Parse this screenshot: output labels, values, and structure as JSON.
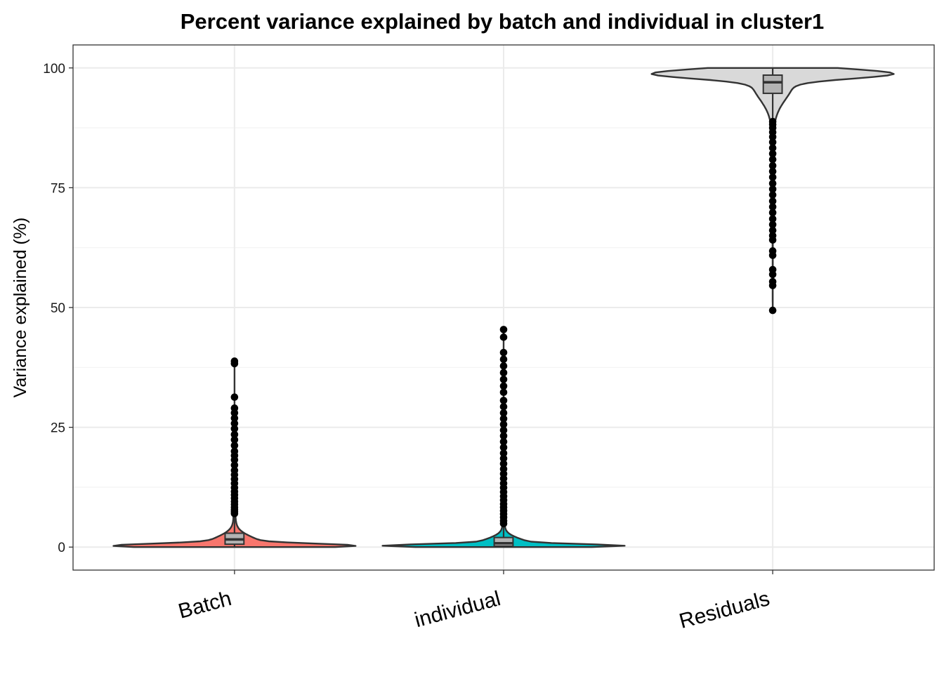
{
  "chart_data": {
    "type": "violin",
    "title": "Percent variance explained by batch and individual in cluster1",
    "xlabel": "",
    "ylabel": "Variance explained (%)",
    "ylim": [
      -4.8,
      104.8
    ],
    "yticks": [
      0,
      25,
      50,
      75,
      100
    ],
    "grid": true,
    "legend": "none",
    "categories": [
      "Batch",
      "individual",
      "Residuals"
    ],
    "series": [
      {
        "category": "Batch",
        "color": "#F8766D",
        "box": {
          "q1": 0.6,
          "median": 1.6,
          "q3": 2.9,
          "whisker_low": 0.0,
          "whisker_high": 6.8
        },
        "outliers": [
          7.0,
          7.4,
          7.8,
          8.3,
          8.9,
          9.5,
          10.2,
          10.9,
          11.6,
          12.4,
          13.3,
          14.2,
          15.1,
          16.0,
          17.1,
          18.2,
          19.1,
          20.0,
          21.2,
          22.4,
          23.5,
          24.7,
          25.8,
          26.9,
          28.0,
          29.0,
          31.3,
          38.3,
          38.8
        ]
      },
      {
        "category": "individual",
        "color": "#00BFC4",
        "box": {
          "q1": 0.2,
          "median": 0.8,
          "q3": 2.0,
          "whisker_low": 0.0,
          "whisker_high": 4.7
        },
        "outliers": [
          4.9,
          5.5,
          6.2,
          6.9,
          7.6,
          8.3,
          9.0,
          9.8,
          10.6,
          11.5,
          12.4,
          13.3,
          14.3,
          15.3,
          16.3,
          17.4,
          18.5,
          19.6,
          20.8,
          22.0,
          23.2,
          24.4,
          25.6,
          26.8,
          28.0,
          29.3,
          30.6,
          32.3,
          33.6,
          35.0,
          36.4,
          37.8,
          39.2,
          40.6,
          43.8,
          45.4
        ]
      },
      {
        "category": "Residuals",
        "color": "#D9D9D9",
        "box": {
          "q1": 94.7,
          "median": 97.0,
          "q3": 98.5,
          "whisker_low": 89.0,
          "whisker_high": 100.0
        },
        "outliers": [
          49.4,
          54.6,
          55.4,
          56.9,
          57.9,
          60.9,
          61.8,
          64.1,
          65.0,
          66.1,
          67.3,
          68.5,
          69.8,
          71.0,
          72.2,
          73.5,
          74.7,
          75.9,
          77.2,
          78.4,
          79.6,
          80.9,
          82.1,
          83.3,
          84.5,
          85.6,
          86.6,
          87.5,
          88.2,
          88.8
        ]
      }
    ]
  }
}
